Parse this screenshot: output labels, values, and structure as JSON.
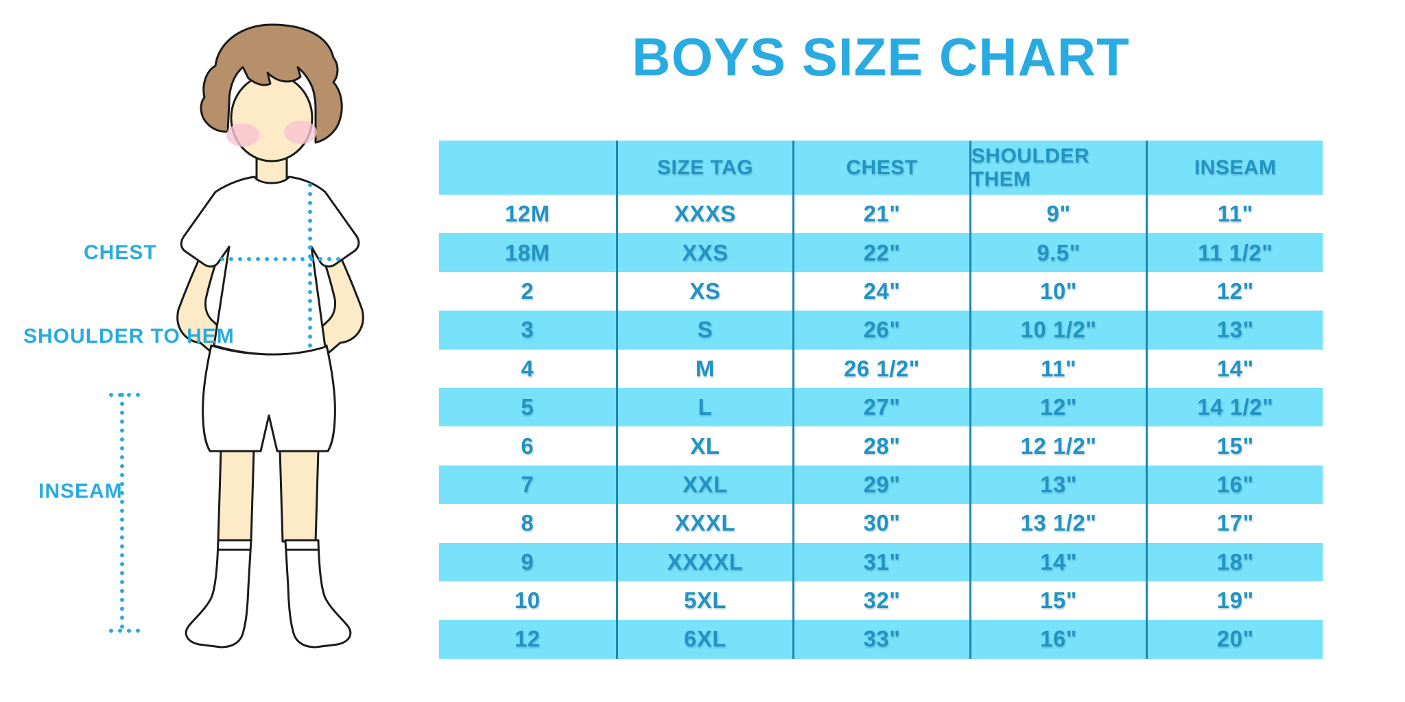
{
  "title": "BOYS SIZE CHART",
  "figure": {
    "description": "line drawing of a boy in white t-shirt, shorts and knee socks with dotted measurement guides",
    "chest_label": "CHEST",
    "shoulder_to_hem_label": "SHOULDER TO HEM",
    "inseam_label": "INSEAM"
  },
  "colors": {
    "accent_blue": "#29abe2",
    "table_text_blue": "#2293c3",
    "row_cyan": "#78e2fa",
    "column_divider_blue": "#1f85b0",
    "skin": "#fdeac6",
    "hair": "#b5906b",
    "blush": "#f8c3d2",
    "outline": "#1b1b1b"
  },
  "chart_data": {
    "type": "table",
    "title": "BOYS SIZE CHART",
    "columns": [
      "",
      "SIZE TAG",
      "CHEST",
      "SHOULDER THEM",
      "INSEAM"
    ],
    "rows": [
      [
        "12M",
        "XXXS",
        "21\"",
        "9\"",
        "11\""
      ],
      [
        "18M",
        "XXS",
        "22\"",
        "9.5\"",
        "11 1/2\""
      ],
      [
        "2",
        "XS",
        "24\"",
        "10\"",
        "12\""
      ],
      [
        "3",
        "S",
        "26\"",
        "10 1/2\"",
        "13\""
      ],
      [
        "4",
        "M",
        "26 1/2\"",
        "11\"",
        "14\""
      ],
      [
        "5",
        "L",
        "27\"",
        "12\"",
        "14 1/2\""
      ],
      [
        "6",
        "XL",
        "28\"",
        "12 1/2\"",
        "15\""
      ],
      [
        "7",
        "XXL",
        "29\"",
        "13\"",
        "16\""
      ],
      [
        "8",
        "XXXL",
        "30\"",
        "13 1/2\"",
        "17\""
      ],
      [
        "9",
        "XXXXL",
        "31\"",
        "14\"",
        "18\""
      ],
      [
        "10",
        "5XL",
        "32\"",
        "15\"",
        "19\""
      ],
      [
        "12",
        "6XL",
        "33\"",
        "16\"",
        "20\""
      ]
    ],
    "striping": "header cyan, data rows alternate white/cyan starting white",
    "grid": "vertical column dividers only, no outer border",
    "legend_position": "none"
  }
}
